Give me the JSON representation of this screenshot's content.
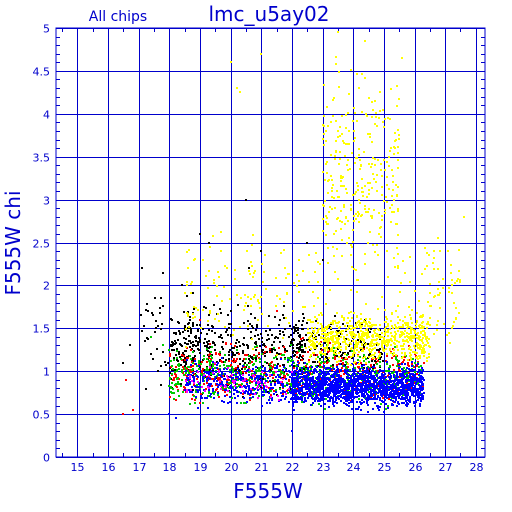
{
  "chart_data": {
    "type": "scatter",
    "title": "lmc_u5ay02",
    "subtitle": "All chips",
    "xlabel": "F555W",
    "ylabel": "F555W chi",
    "xlim": [
      14.3,
      28.3
    ],
    "ylim": [
      0,
      5
    ],
    "xticks": [
      15,
      16,
      17,
      18,
      19,
      20,
      21,
      22,
      23,
      24,
      25,
      26,
      27,
      28
    ],
    "yticks": [
      0,
      0.5,
      1,
      1.5,
      2,
      2.5,
      3,
      3.5,
      4,
      4.5,
      5
    ],
    "ytick_labels": [
      "0",
      "0.5",
      "1",
      "1.5",
      "2",
      "2.5",
      "3",
      "3.5",
      "4",
      "4.5",
      "5"
    ],
    "grid": true,
    "colors": {
      "axis": "#0000cc",
      "grid": "#0000cc",
      "text": "#0000cc"
    },
    "series": [
      {
        "color": "#000000",
        "clusters": [
          {
            "x": [
              17,
              19.5
            ],
            "y": [
              0.6,
              2.1
            ],
            "n": 90
          },
          {
            "x": [
              18,
              22.5
            ],
            "y": [
              0.6,
              1.9
            ],
            "n": 420
          },
          {
            "x": [
              22,
              25
            ],
            "y": [
              0.8,
              1.7
            ],
            "n": 180
          }
        ],
        "points": [
          [
            16.5,
            1.1
          ],
          [
            16.7,
            1.3
          ],
          [
            17.1,
            2.2
          ],
          [
            17.8,
            2.15
          ],
          [
            18.4,
            2.0
          ],
          [
            19.3,
            2.5
          ],
          [
            19.0,
            2.6
          ],
          [
            20.5,
            3.0
          ],
          [
            21.0,
            2.4
          ],
          [
            20.6,
            2.2
          ],
          [
            22.5,
            2.5
          ],
          [
            23.0,
            2.3
          ]
        ]
      },
      {
        "color": "#ff0000",
        "clusters": [
          {
            "x": [
              18,
              26.3
            ],
            "y": [
              0.5,
              1.45
            ],
            "n": 520
          }
        ],
        "points": [
          [
            16.6,
            0.9
          ],
          [
            16.5,
            0.5
          ],
          [
            16.8,
            0.55
          ],
          [
            19.0,
            1.6
          ],
          [
            21.5,
            1.7
          ]
        ]
      },
      {
        "color": "#00cc00",
        "clusters": [
          {
            "x": [
              18,
              26.3
            ],
            "y": [
              0.5,
              1.4
            ],
            "n": 600
          }
        ],
        "points": [
          [
            17.4,
            1.4
          ],
          [
            17.8,
            1.3
          ],
          [
            18.0,
            1.25
          ]
        ]
      },
      {
        "color": "#0000ff",
        "clusters": [
          {
            "x": [
              18.5,
              22
            ],
            "y": [
              0.5,
              1.2
            ],
            "n": 300
          },
          {
            "x": [
              22,
              26.3
            ],
            "y": [
              0.5,
              1.15
            ],
            "n": 1600
          }
        ],
        "points": [
          [
            18.2,
            0.45
          ],
          [
            22.0,
            0.3
          ],
          [
            18.0,
            0.5
          ]
        ]
      },
      {
        "color": "#ff00ff",
        "clusters": [
          {
            "x": [
              18.5,
              22
            ],
            "y": [
              0.55,
              1.2
            ],
            "n": 70
          }
        ],
        "points": []
      },
      {
        "color": "#ffff00",
        "clusters": [
          {
            "x": [
              22.5,
              26.5
            ],
            "y": [
              1.0,
              1.8
            ],
            "n": 700
          },
          {
            "x": [
              23,
              25.5
            ],
            "y": [
              1.5,
              4.9
            ],
            "n": 320
          },
          {
            "x": [
              18.5,
              23
            ],
            "y": [
              1.0,
              2.8
            ],
            "n": 130
          },
          {
            "x": [
              25.5,
              27.5
            ],
            "y": [
              1.0,
              2.8
            ],
            "n": 80
          }
        ],
        "points": [
          [
            20.0,
            4.6
          ],
          [
            20.2,
            4.3
          ],
          [
            20.3,
            4.25
          ],
          [
            21.0,
            4.7
          ],
          [
            23.5,
            4.95
          ],
          [
            24.4,
            4.85
          ],
          [
            25.6,
            4.65
          ],
          [
            27.6,
            2.8
          ],
          [
            27.1,
            2.4
          ],
          [
            19.1,
            2.3
          ],
          [
            18.6,
            2.2
          ]
        ]
      }
    ]
  }
}
